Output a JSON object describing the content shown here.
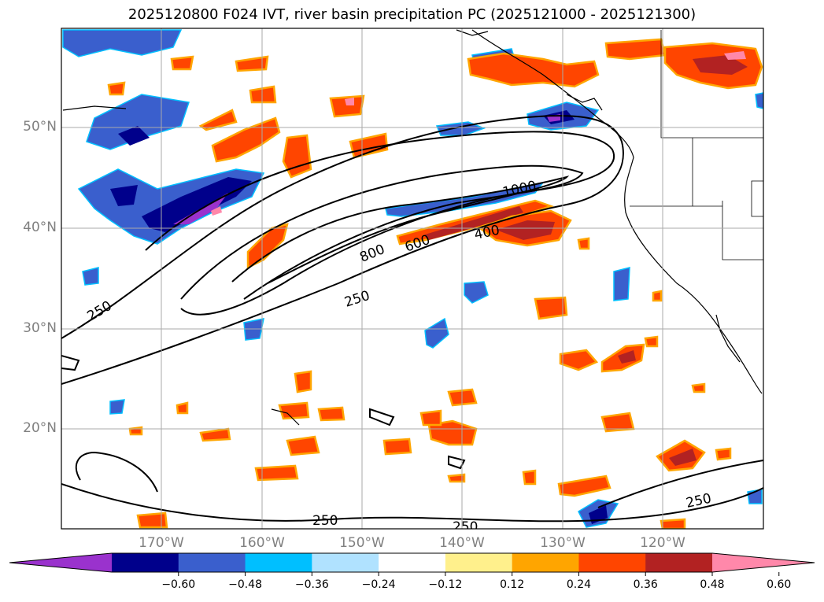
{
  "title": "2025120800 F024 IVT, river basin precipitation PC (2025121000 - 2025121300)",
  "lat_labels": [
    "50°N",
    "40°N",
    "30°N",
    "20°N"
  ],
  "lon_labels": [
    "170°W",
    "160°W",
    "150°W",
    "140°W",
    "130°W",
    "120°W"
  ],
  "contour_labels": [
    "1000",
    "800",
    "600",
    "400",
    "250",
    "250",
    "250",
    "250",
    "250"
  ],
  "colorbar": {
    "ticks": [
      "−0.60",
      "−0.48",
      "−0.36",
      "−0.24",
      "−0.12",
      "0.12",
      "0.24",
      "0.36",
      "0.48",
      "0.60"
    ],
    "colors": [
      "#9a32cd",
      "#00008b",
      "#3a5fcd",
      "#00bfff",
      "#b0e2ff",
      "#ffffff",
      "#fff08c",
      "#ffa500",
      "#ff4500",
      "#b22222",
      "#ff88aa"
    ]
  },
  "palette": {
    "neg_deep": "#9a32cd",
    "neg_navy": "#00008b",
    "neg_blue": "#3a5fcd",
    "neg_sky": "#00bfff",
    "neg_light": "#b0e2ff",
    "pos_yellow": "#fff08c",
    "pos_orange": "#ffa500",
    "pos_red": "#ff4500",
    "pos_dark": "#b22222",
    "pos_pink": "#ff88aa"
  }
}
